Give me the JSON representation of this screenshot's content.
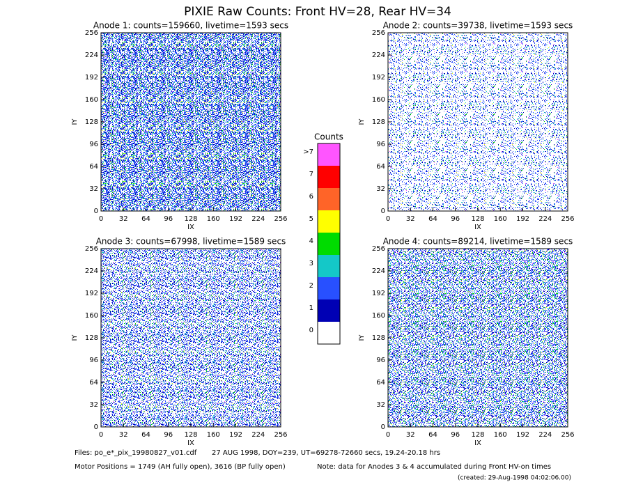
{
  "title": "PIXIE Raw Counts:  Front HV=28, Rear HV=34",
  "chart_data": [
    {
      "type": "heatmap",
      "title": "Anode 1: counts=159660, livetime=1593 secs",
      "xlabel": "IX",
      "ylabel": "IY",
      "xlim": [
        0,
        256
      ],
      "ylim": [
        0,
        256
      ],
      "xticks": [
        0,
        32,
        64,
        96,
        128,
        160,
        192,
        224,
        256
      ],
      "yticks": [
        0,
        32,
        64,
        96,
        128,
        160,
        192,
        224,
        256
      ]
    },
    {
      "type": "heatmap",
      "title": "Anode 2: counts=39738, livetime=1593 secs",
      "xlabel": "IX",
      "ylabel": "IY",
      "xlim": [
        0,
        256
      ],
      "ylim": [
        0,
        256
      ],
      "xticks": [
        0,
        32,
        64,
        96,
        128,
        160,
        192,
        224,
        256
      ],
      "yticks": [
        0,
        32,
        64,
        96,
        128,
        160,
        192,
        224,
        256
      ]
    },
    {
      "type": "heatmap",
      "title": "Anode 3: counts=67998, livetime=1589 secs",
      "xlabel": "IX",
      "ylabel": "IY",
      "xlim": [
        0,
        256
      ],
      "ylim": [
        0,
        256
      ],
      "xticks": [
        0,
        32,
        64,
        96,
        128,
        160,
        192,
        224,
        256
      ],
      "yticks": [
        0,
        32,
        64,
        96,
        128,
        160,
        192,
        224,
        256
      ]
    },
    {
      "type": "heatmap",
      "title": "Anode 4: counts=89214, livetime=1589 secs",
      "xlabel": "IX",
      "ylabel": "IY",
      "xlim": [
        0,
        256
      ],
      "ylim": [
        0,
        256
      ],
      "xticks": [
        0,
        32,
        64,
        96,
        128,
        160,
        192,
        224,
        256
      ],
      "yticks": [
        0,
        32,
        64,
        96,
        128,
        160,
        192,
        224,
        256
      ]
    }
  ],
  "colorbar": {
    "title": "Counts",
    "ticks": [
      0,
      1,
      2,
      3,
      4,
      5,
      6,
      7,
      {
        "value": 8,
        "label": ">7"
      }
    ],
    "colors": [
      "#ffffff",
      "#0000b4",
      "#2850ff",
      "#14c8c8",
      "#00dc00",
      "#ffff00",
      "#ff6428",
      "#ff0000",
      "#ff55ff"
    ]
  },
  "footer": {
    "files": "Files: po_e*_pix_19980827_v01.cdf",
    "date": "27 AUG 1998, DOY=239, UT=69278-72660 secs, 19.24-20.18 hrs",
    "motor": "Motor Positions = 1749 (AH fully open), 3616 (BP fully open)",
    "note": "Note: data for Anodes 3 & 4 accumulated during Front HV-on times",
    "created": "(created: 29-Aug-1998 04:02:06.00)"
  }
}
